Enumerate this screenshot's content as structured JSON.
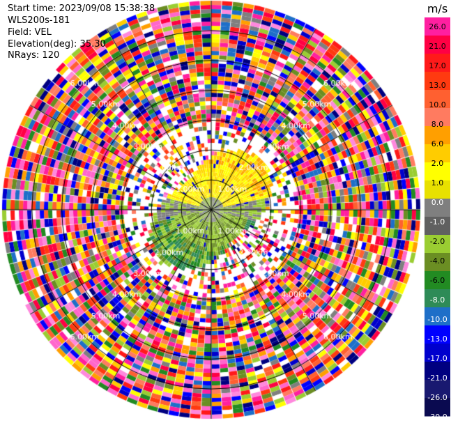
{
  "header": {
    "start_time": "Start time: 2023/09/08 15:38:38",
    "instrument": "WLS200s-181",
    "field": "Field: VEL",
    "elevation": "Elevation(deg): 35.30",
    "nrays": "NRays: 120"
  },
  "chart_data": {
    "type": "heatmap",
    "projection": "polar-ppi",
    "field": "VEL",
    "units": "m/s",
    "nrays": 120,
    "elevation_deg": 35.3,
    "range_rings_km": [
      1.0,
      2.0,
      3.0,
      4.0,
      5.0,
      6.0
    ],
    "range_ring_labels": [
      "1.00km",
      "2.00km",
      "3.00km",
      "4.00km",
      "5.00km",
      "6.00km"
    ],
    "spokes_deg": [
      0,
      30,
      60,
      90,
      120,
      150,
      180,
      210,
      240,
      270,
      300,
      330
    ],
    "colorbar": {
      "label": "m/s",
      "ticks": [
        "26.0",
        "21.0",
        "17.0",
        "13.0",
        "10.0",
        "8.0",
        "6.0",
        "2.0",
        "1.0",
        "0.0",
        "-1.0",
        "-2.0",
        "-4.0",
        "-6.0",
        "-8.0",
        "-10.0",
        "-13.0",
        "-17.0",
        "-21.0",
        "-26.0",
        "-30.0"
      ],
      "colors": [
        "#ff1fa0",
        "#ff0044",
        "#ff1a1a",
        "#ff3a10",
        "#ff6030",
        "#ff7b60",
        "#ff9f00",
        "#ffcc00",
        "#ffff00",
        "#e8e000",
        "#7f7f7f",
        "#606060",
        "#9acd32",
        "#6b8e23",
        "#228b22",
        "#2e8b57",
        "#1e6fc8",
        "#0000ff",
        "#0000cd",
        "#000080",
        "#191970",
        "#0a0a50"
      ]
    },
    "clean_region": {
      "max_range_km": 2.2,
      "description_colors": {
        "north": [
          "#ffff00",
          "#ffd700",
          "#ffa500"
        ],
        "center": [
          "#7f7f7f",
          "#9acd32"
        ],
        "south": [
          "#9acd32",
          "#6b8e23",
          "#228b22",
          "#2e8b57"
        ]
      }
    }
  }
}
